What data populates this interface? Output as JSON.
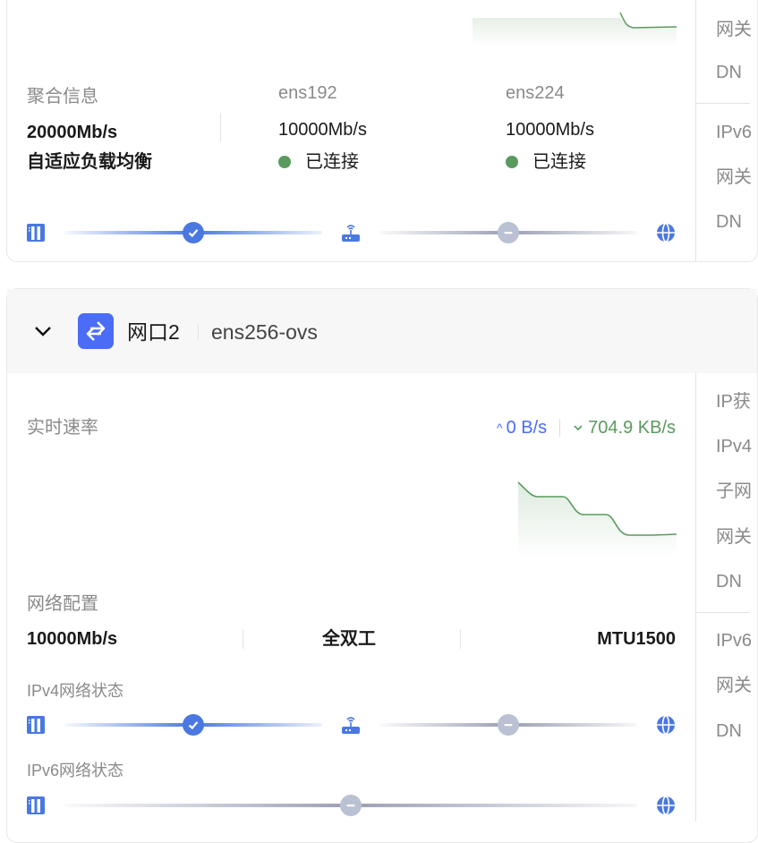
{
  "colors": {
    "accent": "#4a78e0",
    "upload": "#4a6cf7",
    "download": "#5a9a5f",
    "connected": "#5a9a5f",
    "unknown": "#b9c1d2"
  },
  "bond": {
    "aggregate_label": "聚合信息",
    "aggregate_speed": "20000Mb/s",
    "aggregate_mode": "自适应负载均衡",
    "members": [
      {
        "name": "ens192",
        "speed": "10000Mb/s",
        "status": "已连接"
      },
      {
        "name": "ens224",
        "speed": "10000Mb/s",
        "status": "已连接"
      }
    ],
    "path_states": [
      "ok",
      "unknown"
    ]
  },
  "right_panel_1": {
    "ipv4": [
      "网关",
      "DN"
    ],
    "ipv6": [
      "IPv6",
      "网关",
      "DN"
    ]
  },
  "port2": {
    "title": "网口2",
    "device": "ens256-ovs",
    "rate_label": "实时速率",
    "upload": "0 B/s",
    "download": "704.9 KB/s",
    "config_label": "网络配置",
    "speed": "10000Mb/s",
    "duplex": "全双工",
    "mtu": "MTU1500",
    "ipv4_status_label": "IPv4网络状态",
    "ipv4_states": [
      "ok",
      "unknown"
    ],
    "ipv6_status_label": "IPv6网络状态",
    "ipv6_states": [
      "unknown"
    ],
    "right_panel": {
      "ipv4": [
        "IP获",
        "IPv4",
        "子网",
        "网关",
        "DN"
      ],
      "ipv6": [
        "IPv6",
        "网关",
        "DN"
      ]
    }
  },
  "icons": {
    "server": "server-icon",
    "router": "router-icon",
    "internet": "globe-icon",
    "ok": "check-icon",
    "unknown": "minus-icon",
    "expand": "chevron-down-icon",
    "port": "swap-arrows-icon"
  }
}
